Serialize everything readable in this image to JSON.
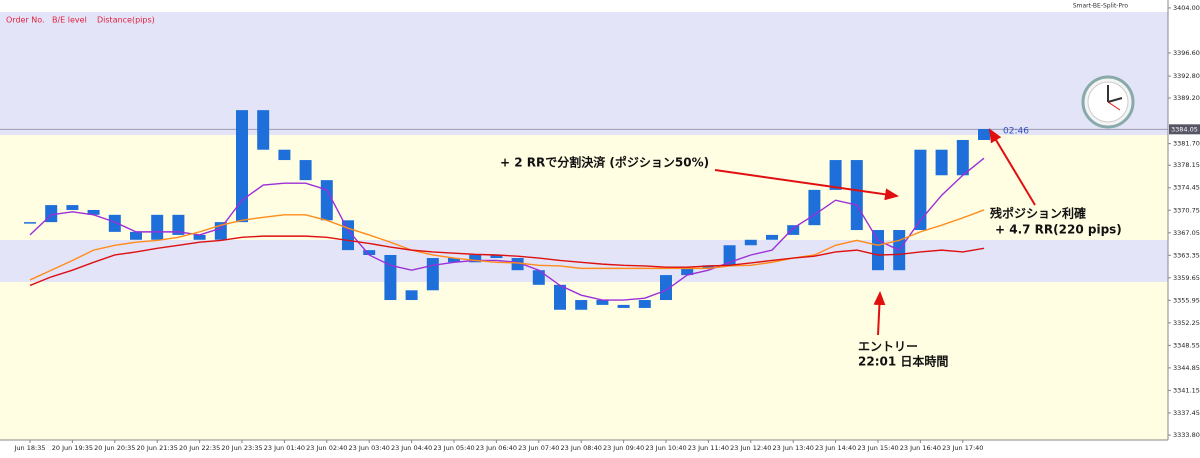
{
  "header": {
    "indicator": "Smart-BE-Split-Pro",
    "columns": [
      "Order No.",
      "B/E level",
      "Distance(pips)"
    ]
  },
  "chart_data": {
    "type": "candlestick",
    "categories": [
      "Jun 18:35",
      null,
      "20 Jun 19:35",
      null,
      "20 Jun 20:35",
      null,
      "20 Jun 21:35",
      null,
      "20 Jun 22:35",
      null,
      "20 Jun 23:35",
      null,
      "23 Jun 01:40",
      null,
      "23 Jun 02:40",
      null,
      "23 Jun 03:40",
      null,
      "23 Jun 04:40",
      null,
      "23 Jun 05:40",
      null,
      "23 Jun 06:40",
      null,
      "23 Jun 07:40",
      null,
      "23 Jun 08:40",
      null,
      "23 Jun 09:40",
      null,
      "23 Jun 10:40",
      null,
      "23 Jun 11:40",
      null,
      "23 Jun 12:40",
      null,
      "23 Jun 13:40",
      null,
      "23 Jun 14:40",
      null,
      "23 Jun 15:40",
      null,
      "23 Jun 16:40",
      null,
      "23 Jun 17:40",
      null
    ],
    "series": [
      {
        "name": "Price",
        "color": "#1e6fd9",
        "values": [
          3368.8,
          3371.6,
          3370.8,
          3370.0,
          3367.2,
          3365.9,
          3370.0,
          3366.7,
          3365.9,
          3368.8,
          3387.2,
          3380.7,
          3379.0,
          3375.7,
          3369.1,
          3364.2,
          3363.4,
          3356.0,
          3357.6,
          3362.9,
          3362.2,
          3363.4,
          3362.9,
          3360.9,
          3358.5,
          3354.4,
          3356.0,
          3355.2,
          3354.7,
          3356.0,
          3360.1,
          3361.3,
          3361.7,
          3365.0,
          3365.9,
          3366.7,
          3368.3,
          3374.1,
          3379.0,
          3367.5,
          3360.9,
          3367.5,
          3380.7,
          3376.5,
          3382.3,
          3384.1
        ]
      },
      {
        "name": "MA fast",
        "color": "#9b30d9",
        "values": [
          3366.7,
          3370.0,
          3370.5,
          3370.0,
          3368.8,
          3367.2,
          3367.2,
          3367.2,
          3366.7,
          3367.8,
          3372.4,
          3374.9,
          3375.2,
          3375.2,
          3374.1,
          3367.5,
          3363.4,
          3361.7,
          3360.9,
          3361.7,
          3362.2,
          3362.5,
          3362.5,
          3362.2,
          3360.9,
          3358.4,
          3356.8,
          3356.0,
          3356.0,
          3356.3,
          3357.6,
          3360.1,
          3360.9,
          3362.2,
          3363.4,
          3364.2,
          3367.8,
          3370.0,
          3372.4,
          3371.6,
          3365.8,
          3364.2,
          3369.1,
          3373.2,
          3376.5,
          3379.3
        ]
      },
      {
        "name": "MA mid",
        "color": "#ff8c1a",
        "values": [
          3359.3,
          3360.9,
          3362.5,
          3364.2,
          3365.0,
          3365.5,
          3365.8,
          3366.3,
          3367.2,
          3368.3,
          3369.1,
          3369.6,
          3370.0,
          3370.0,
          3369.1,
          3367.8,
          3366.7,
          3365.5,
          3364.2,
          3363.4,
          3362.9,
          3362.5,
          3362.2,
          3362.1,
          3361.7,
          3361.6,
          3361.2,
          3361.2,
          3361.2,
          3361.2,
          3361.2,
          3361.2,
          3361.2,
          3361.6,
          3361.7,
          3362.2,
          3362.9,
          3363.4,
          3365.0,
          3365.8,
          3365.0,
          3365.8,
          3367.2,
          3368.3,
          3369.5,
          3370.8
        ]
      },
      {
        "name": "MA slow",
        "color": "#dd1111",
        "values": [
          3358.4,
          3359.8,
          3360.9,
          3362.2,
          3363.4,
          3363.9,
          3364.5,
          3365.0,
          3365.5,
          3365.8,
          3366.3,
          3366.5,
          3366.5,
          3366.5,
          3366.3,
          3365.8,
          3365.3,
          3364.7,
          3364.2,
          3363.9,
          3363.7,
          3363.5,
          3363.4,
          3363.2,
          3362.9,
          3362.5,
          3362.2,
          3361.9,
          3361.7,
          3361.6,
          3361.4,
          3361.4,
          3361.6,
          3361.7,
          3362.1,
          3362.5,
          3362.9,
          3363.2,
          3363.9,
          3364.2,
          3363.4,
          3363.5,
          3363.9,
          3364.2,
          3363.9,
          3364.5
        ]
      }
    ],
    "ylim": [
      3333.0,
      3405.3
    ],
    "yticks": [
      {
        "value": 3404.0,
        "label": "3404.00"
      },
      {
        "value": 3396.6,
        "label": "3396.60"
      },
      {
        "value": 3392.8,
        "label": "3392.80"
      },
      {
        "value": 3389.2,
        "label": "3389.20"
      },
      {
        "value": 3381.7,
        "label": "3381.70"
      },
      {
        "value": 3378.15,
        "label": "3378.15"
      },
      {
        "value": 3374.45,
        "label": "3374.45"
      },
      {
        "value": 3370.75,
        "label": "3370.75"
      },
      {
        "value": 3367.05,
        "label": "3367.05"
      },
      {
        "value": 3363.35,
        "label": "3363.35"
      },
      {
        "value": 3359.65,
        "label": "3359.65"
      },
      {
        "value": 3355.95,
        "label": "3355.95"
      },
      {
        "value": 3352.25,
        "label": "3352.25"
      },
      {
        "value": 3348.55,
        "label": "3348.55"
      },
      {
        "value": 3344.85,
        "label": "3344.85"
      },
      {
        "value": 3341.15,
        "label": "3341.15"
      },
      {
        "value": 3337.45,
        "label": "3337.45"
      },
      {
        "value": 3333.8,
        "label": "3333.80"
      }
    ],
    "current_price": {
      "value": 3384.05,
      "label": "3384.05"
    },
    "timer": "02:46",
    "annotations": [
      "+ 2 RRで分割決済 (ポジション50%)",
      "残ポジション利確",
      "+ 4.7 RR(220 pips)",
      "エントリー",
      "22:01 日本時間"
    ]
  }
}
